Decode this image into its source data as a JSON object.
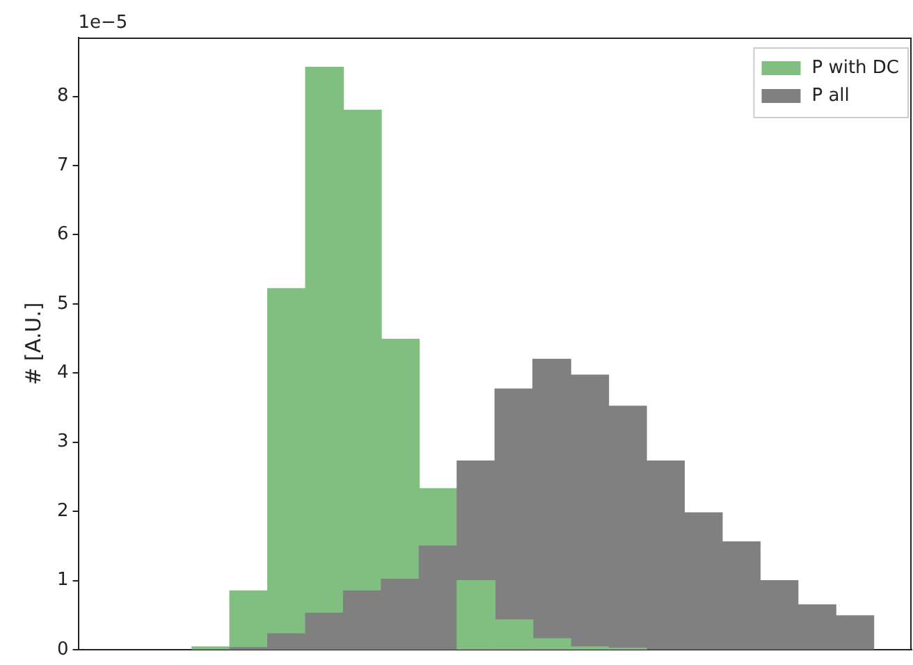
{
  "chart_data": {
    "type": "bar",
    "ylabel": "# [A.U.]",
    "annotations": [
      "1e−5"
    ],
    "categories": [
      null,
      null,
      null,
      null,
      null,
      null,
      null,
      null,
      null,
      null,
      null,
      null,
      null,
      null,
      null,
      null,
      null,
      null,
      null,
      null,
      null,
      null
    ],
    "series": [
      {
        "name": "P with DC",
        "color": "#80bf80",
        "values": [
          null,
          null,
          null,
          0.04,
          0.85,
          5.22,
          8.42,
          7.8,
          4.49,
          2.33,
          1.0,
          0.43,
          0.16,
          0.04,
          0.02,
          null,
          null,
          null,
          null,
          null,
          null,
          null
        ]
      },
      {
        "name": "P all",
        "color": "#808080",
        "values": [
          null,
          null,
          null,
          null,
          0.03,
          0.23,
          0.53,
          0.85,
          1.02,
          1.5,
          2.73,
          3.77,
          4.2,
          3.97,
          3.52,
          2.73,
          1.98,
          1.56,
          1.0,
          0.65,
          0.49,
          null
        ]
      }
    ],
    "ylim": [
      0,
      8.85
    ],
    "yticks": [
      0,
      1,
      2,
      3,
      4,
      5,
      6,
      7,
      8
    ],
    "tick_labels": "y",
    "legend": "top right"
  }
}
